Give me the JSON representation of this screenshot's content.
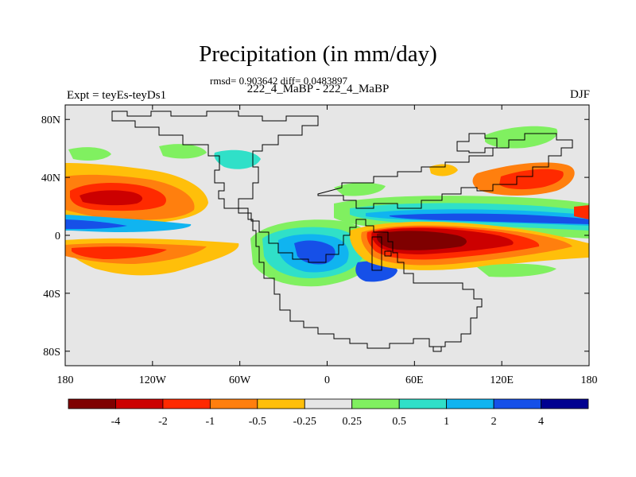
{
  "chart_data": {
    "type": "heatmap",
    "title": "Precipitation (in mm/day)",
    "stats_text": "rmsd= 0.903642 diff= 0.0483897",
    "subtitle": "222_4_MaBP - 222_4_MaBP",
    "left_label": "Expt = teyEs-teyDs1",
    "right_label": "DJF",
    "xlim": [
      -180,
      180
    ],
    "ylim": [
      -90,
      90
    ],
    "x_ticks": [
      {
        "value": -180,
        "label": "180"
      },
      {
        "value": -120,
        "label": "120W"
      },
      {
        "value": -60,
        "label": "60W"
      },
      {
        "value": 0,
        "label": "0"
      },
      {
        "value": 60,
        "label": "60E"
      },
      {
        "value": 120,
        "label": "120E"
      },
      {
        "value": 180,
        "label": "180"
      }
    ],
    "y_ticks": [
      {
        "value": 80,
        "label": "80N"
      },
      {
        "value": 40,
        "label": "40N"
      },
      {
        "value": 0,
        "label": "0"
      },
      {
        "value": -40,
        "label": "40S"
      },
      {
        "value": -80,
        "label": "80S"
      }
    ],
    "colorbar": {
      "levels": [
        "-4",
        "-2",
        "-1",
        "-0.5",
        "-0.25",
        "0.25",
        "0.5",
        "1",
        "2",
        "4"
      ],
      "colors": [
        "#7f0000",
        "#cc0000",
        "#ff2a00",
        "#ff7f0e",
        "#ffbf0a",
        "#e6e6e6",
        "#80f060",
        "#30e0c8",
        "#10b4f0",
        "#1650e8",
        "#000090"
      ]
    },
    "features": [
      {
        "name": "neg-core-east",
        "lon": 60,
        "lat": -8,
        "level": -4
      },
      {
        "name": "neg-core-north-pacific",
        "lon": -145,
        "lat": 28,
        "level": -2
      },
      {
        "name": "pos-core-south-atlantic",
        "lon": -30,
        "lat": -18,
        "level": 4
      },
      {
        "name": "pos-core-southeast",
        "lon": 40,
        "lat": -22,
        "level": 2
      },
      {
        "name": "pos-band-equator-east",
        "lon": 120,
        "lat": 6,
        "level": 2
      }
    ]
  }
}
